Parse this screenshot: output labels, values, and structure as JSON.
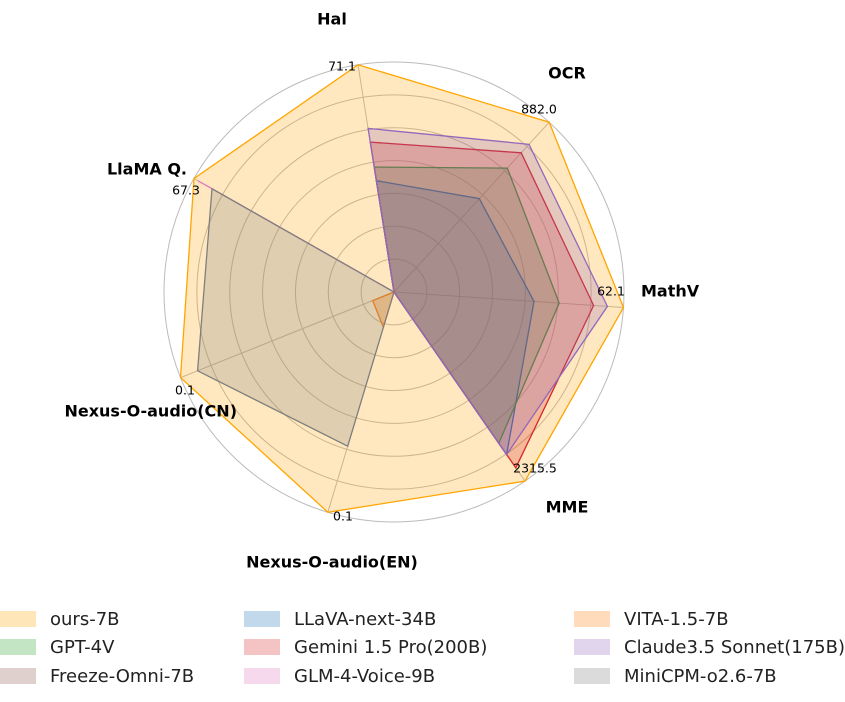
{
  "chart_data": {
    "type": "radar",
    "axes": [
      {
        "label": "Hal",
        "max_label": "71.1"
      },
      {
        "label": "OCR",
        "max_label": "882.0"
      },
      {
        "label": "MathV",
        "max_label": "62.1"
      },
      {
        "label": "MME",
        "max_label": "2315.5"
      },
      {
        "label": "Nexus-O-audio(EN)",
        "max_label": "0.1"
      },
      {
        "label": "Nexus-O-audio(CN)",
        "max_label": "0.1"
      },
      {
        "label": "LlaMA Q.",
        "max_label": "67.3"
      }
    ],
    "rings": 7,
    "series": [
      {
        "name": "ours-7B",
        "color": "#ffa500",
        "fill_opacity": 0.25,
        "values": [
          1.0,
          1.0,
          1.0,
          1.0,
          1.0,
          1.0,
          1.0
        ]
      },
      {
        "name": "LLaVA-next-34B",
        "color": "#1f77b4",
        "fill_opacity": 0.25,
        "values": [
          0.49,
          0.55,
          0.61,
          0.86,
          0.0,
          0.0,
          0.0
        ]
      },
      {
        "name": "VITA-1.5-7B",
        "color": "#ff7f0e",
        "fill_opacity": 0.3,
        "values": [
          0.0,
          0.0,
          0.0,
          0.0,
          0.16,
          0.1,
          0.0
        ]
      },
      {
        "name": "GPT-4V",
        "color": "#2ca02c",
        "fill_opacity": 0.25,
        "values": [
          0.55,
          0.73,
          0.72,
          0.8,
          0.0,
          0.0,
          0.0
        ]
      },
      {
        "name": "Gemini 1.5 Pro(200B)",
        "color": "#d62728",
        "fill_opacity": 0.25,
        "values": [
          0.66,
          0.82,
          0.87,
          0.93,
          0.0,
          0.0,
          0.0
        ]
      },
      {
        "name": "Claude3.5 Sonnet(175B)",
        "color": "#9467bd",
        "fill_opacity": 0.25,
        "values": [
          0.72,
          0.87,
          0.93,
          0.86,
          0.0,
          0.0,
          0.0
        ]
      },
      {
        "name": "Freeze-Omni-7B",
        "color": "#8c564b",
        "fill_opacity": 0.25,
        "values": [
          0.0,
          0.0,
          0.0,
          0.0,
          0.0,
          0.0,
          0.0
        ]
      },
      {
        "name": "GLM-4-Voice-9B",
        "color": "#e377c2",
        "fill_opacity": 0.25,
        "values": [
          0.0,
          0.0,
          0.0,
          0.0,
          0.0,
          0.0,
          0.98
        ]
      },
      {
        "name": "MiniCPM-o2.6-7B",
        "color": "#7f7f7f",
        "fill_opacity": 0.25,
        "values": [
          0.0,
          0.0,
          0.0,
          0.0,
          0.7,
          0.92,
          0.91
        ]
      }
    ],
    "legend_position": "bottom",
    "grid": true
  }
}
